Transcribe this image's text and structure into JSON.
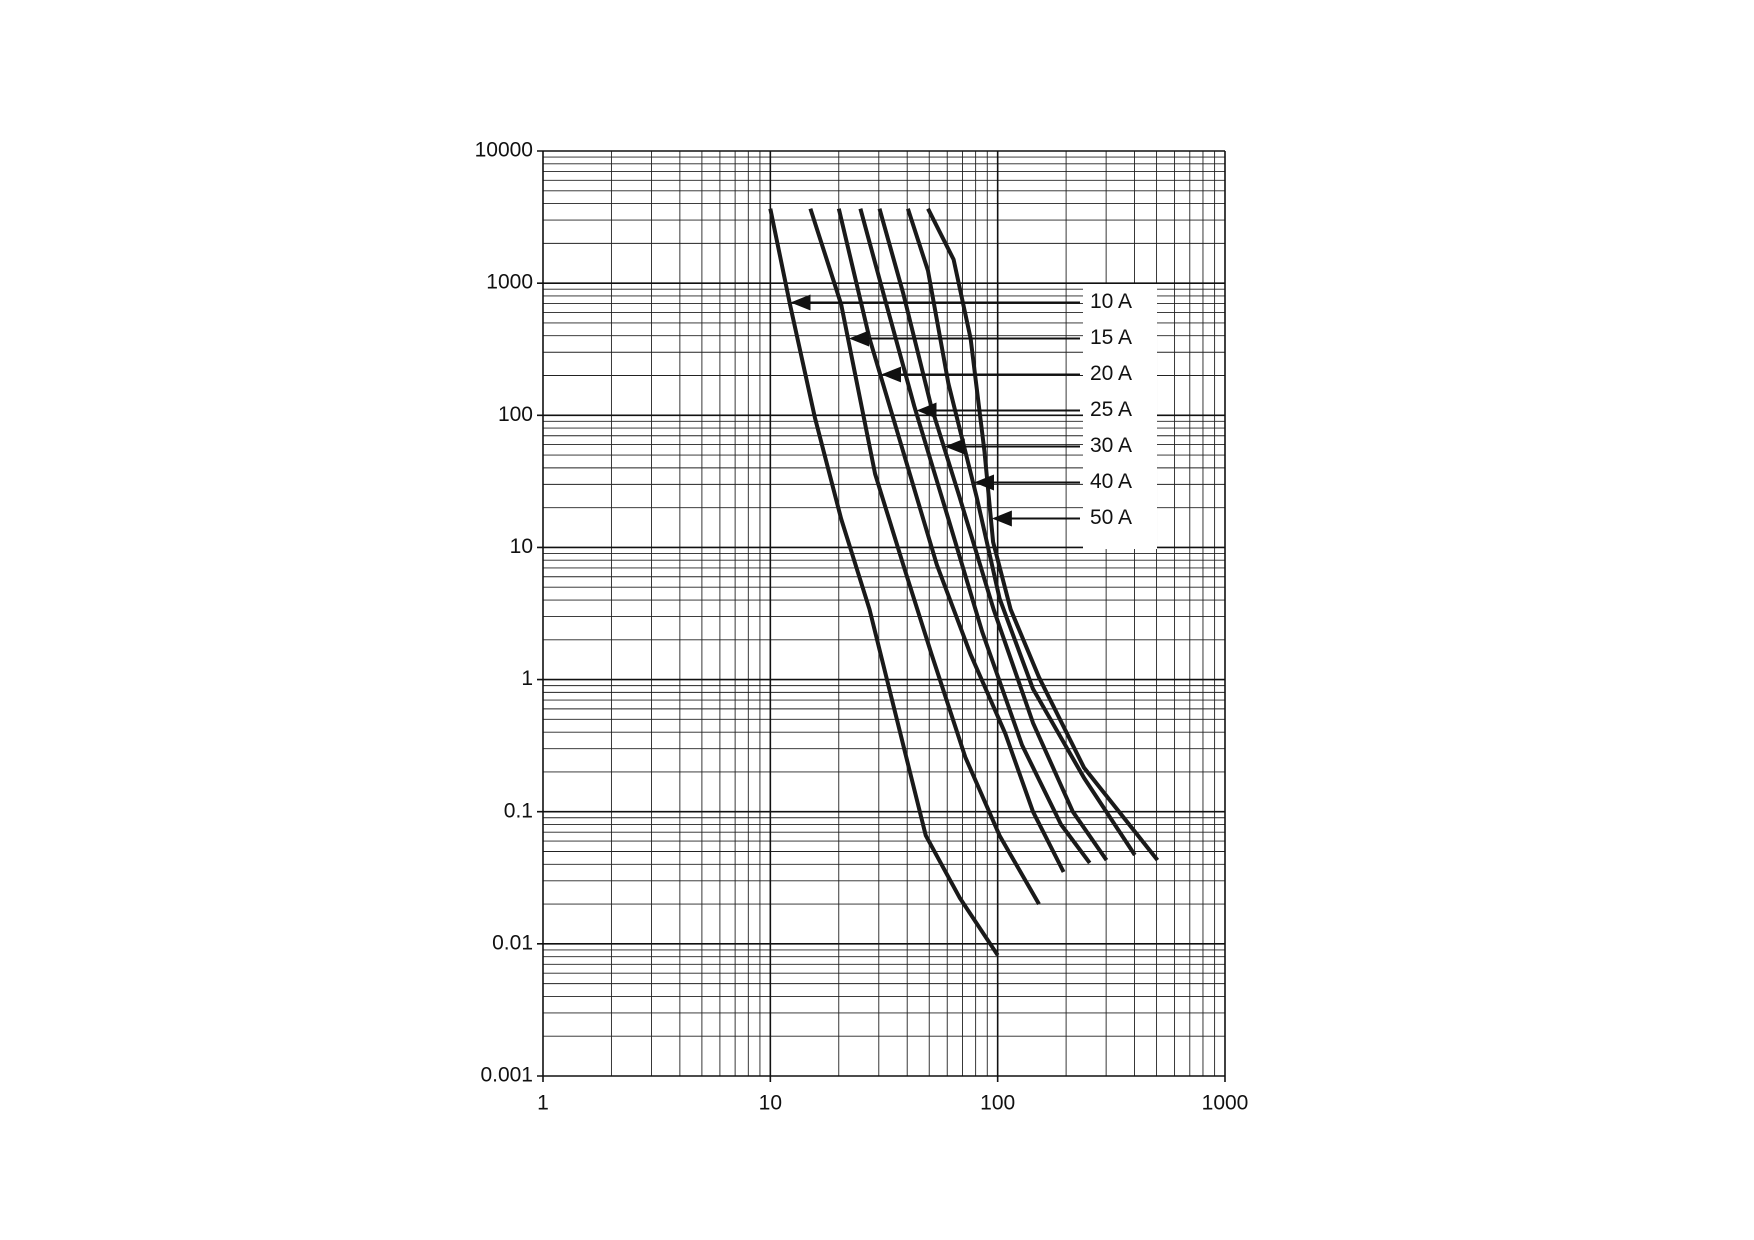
{
  "chart_data": {
    "type": "line",
    "log_x": true,
    "log_y": true,
    "grid": true,
    "xlim": [
      1,
      1000
    ],
    "xticks": [
      1,
      10,
      100,
      1000
    ],
    "ylim": [
      0.001,
      10000
    ],
    "yticks": [
      0.001,
      0.01,
      0.1,
      1,
      10,
      100,
      1000,
      10000
    ],
    "series": [
      {
        "name": "10 A",
        "color": "#1a1a1a",
        "x": [
          10,
          12.2,
          15.7,
          20.5,
          27.3,
          32.4,
          40.7,
          48.3,
          68,
          100
        ],
        "values": [
          3660,
          689,
          96,
          16.4,
          3.4,
          1.04,
          0.215,
          0.066,
          0.0224,
          0.0082
        ]
      },
      {
        "name": "15 A",
        "color": "#1a1a1a",
        "x": [
          15,
          20.5,
          28.9,
          38.4,
          51.2,
          72,
          102,
          152
        ],
        "values": [
          3660,
          689,
          36,
          7.4,
          1.55,
          0.26,
          0.066,
          0.02
        ]
      },
      {
        "name": "20 A",
        "color": "#1a1a1a",
        "x": [
          20,
          27.3,
          38.4,
          54,
          76,
          108,
          143,
          195
        ],
        "values": [
          3660,
          382,
          53,
          7.4,
          1.55,
          0.39,
          0.1,
          0.035
        ]
      },
      {
        "name": "25 A",
        "color": "#1a1a1a",
        "x": [
          24.9,
          32.4,
          43,
          60.7,
          85.5,
          128,
          190,
          254
        ],
        "values": [
          3660,
          689,
          117,
          16.4,
          2.3,
          0.32,
          0.08,
          0.041
        ]
      },
      {
        "name": "30 A",
        "color": "#1a1a1a",
        "x": [
          30.2,
          38.4,
          51,
          68,
          96,
          143,
          214,
          301
        ],
        "values": [
          3660,
          838,
          117,
          24,
          3.4,
          0.47,
          0.1,
          0.043
        ]
      },
      {
        "name": "40 A",
        "color": "#1a1a1a",
        "x": [
          40.3,
          49.4,
          60.7,
          80.9,
          102,
          143,
          240,
          401
        ],
        "values": [
          3660,
          1240,
          174,
          24,
          4.1,
          0.85,
          0.18,
          0.047
        ]
      },
      {
        "name": "50 A",
        "color": "#1a1a1a",
        "x": [
          49.4,
          64,
          76,
          87.5,
          95.5,
          114,
          152,
          240,
          505
        ],
        "values": [
          3660,
          1510,
          382,
          53,
          11,
          3.4,
          1.04,
          0.215,
          0.043
        ]
      }
    ]
  }
}
